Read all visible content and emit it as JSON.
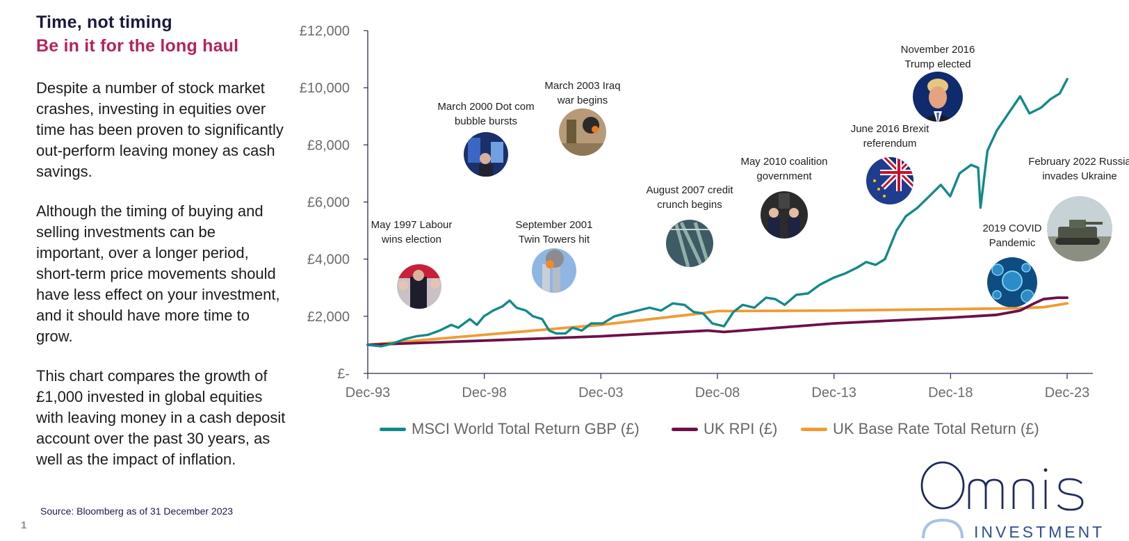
{
  "title": "Time, not timing",
  "subtitle": "Be in it for the long haul",
  "paragraphs": [
    "Despite a number of stock market crashes, investing in equities over time has been proven to significantly out-perform leaving money as cash savings.",
    "Although the timing of buying and selling investments can be important, over a longer period, short-term price movements should have less effect on your investment, and it should have more time to grow.",
    "This chart compares the growth of £1,000 invested in global equities with leaving money in a cash deposit account over the past 30 years, as well as the impact of inflation."
  ],
  "source": "Source: Bloomberg as of 31 December 2023",
  "page_number": "1",
  "logo": {
    "name": "Omnis",
    "tagline": "INVESTMENTS"
  },
  "colors": {
    "msci": "#13898a",
    "rpi": "#6d1049",
    "base": "#ef9c35",
    "axis": "#2a2a55",
    "title_accent": "#b3245d",
    "logo": "#1e2a5e",
    "logo_light": "#a9c1e6"
  },
  "chart_data": {
    "type": "line",
    "x_ticks": [
      "Dec-93",
      "Dec-98",
      "Dec-03",
      "Dec-08",
      "Dec-13",
      "Dec-18",
      "Dec-23"
    ],
    "y_ticks": [
      "£-",
      "£2,000",
      "£4,000",
      "£6,000",
      "£8,000",
      "£10,000",
      "£12,000"
    ],
    "ylim": [
      0,
      12000
    ],
    "xlim": [
      1993.917,
      2023.917
    ],
    "grid": false,
    "legend_position": "bottom",
    "series": [
      {
        "name": "MSCI World Total Return GBP (£)",
        "color": "#13898a",
        "x": [
          1993.92,
          1994.5,
          1995.0,
          1995.5,
          1996.0,
          1996.5,
          1997.0,
          1997.5,
          1997.8,
          1998.3,
          1998.6,
          1998.9,
          1999.3,
          1999.7,
          2000.0,
          2000.3,
          2000.7,
          2001.0,
          2001.4,
          2001.7,
          2002.0,
          2002.4,
          2002.7,
          2003.1,
          2003.5,
          2004.0,
          2004.5,
          2005.0,
          2005.5,
          2006.0,
          2006.5,
          2007.0,
          2007.5,
          2007.9,
          2008.3,
          2008.7,
          2009.2,
          2009.6,
          2010.0,
          2010.5,
          2011.0,
          2011.4,
          2011.8,
          2012.3,
          2012.8,
          2013.3,
          2013.9,
          2014.4,
          2014.9,
          2015.3,
          2015.7,
          2016.1,
          2016.6,
          2017.0,
          2017.5,
          2018.0,
          2018.5,
          2018.9,
          2019.3,
          2019.8,
          2020.1,
          2020.2,
          2020.5,
          2020.9,
          2021.4,
          2021.9,
          2022.3,
          2022.8,
          2023.2,
          2023.6,
          2023.92
        ],
        "values": [
          1000,
          950,
          1050,
          1200,
          1300,
          1350,
          1500,
          1700,
          1600,
          1900,
          1700,
          2000,
          2200,
          2350,
          2550,
          2300,
          2200,
          2000,
          1900,
          1500,
          1400,
          1400,
          1600,
          1500,
          1750,
          1750,
          2000,
          2100,
          2200,
          2300,
          2200,
          2450,
          2400,
          2150,
          2100,
          1750,
          1650,
          2150,
          2400,
          2300,
          2650,
          2600,
          2400,
          2750,
          2800,
          3100,
          3350,
          3500,
          3700,
          3900,
          3800,
          4000,
          5000,
          5500,
          5800,
          6200,
          6600,
          6200,
          7000,
          7300,
          7200,
          5800,
          7800,
          8500,
          9100,
          9700,
          9100,
          9300,
          9600,
          9800,
          10300
        ]
      },
      {
        "name": "UK RPI (£)",
        "color": "#6d1049",
        "x": [
          1993.92,
          1998.9,
          2003.9,
          2008.5,
          2009.2,
          2013.9,
          2018.9,
          2020.9,
          2021.9,
          2022.5,
          2022.9,
          2023.5,
          2023.92
        ],
        "values": [
          1000,
          1150,
          1300,
          1500,
          1450,
          1750,
          1950,
          2050,
          2200,
          2450,
          2600,
          2650,
          2650
        ]
      },
      {
        "name": "UK Base Rate Total Return (£)",
        "color": "#ef9c35",
        "x": [
          1993.92,
          1998.9,
          2003.9,
          2008.2,
          2008.9,
          2013.9,
          2018.9,
          2021.9,
          2022.9,
          2023.92
        ],
        "values": [
          1000,
          1350,
          1700,
          2100,
          2180,
          2200,
          2250,
          2280,
          2320,
          2450
        ]
      }
    ],
    "annotations": [
      {
        "lines": [
          "May 1997 Labour",
          "wins election"
        ],
        "x": 1997.4,
        "photo": "labour-election-photo"
      },
      {
        "lines": [
          "March 2000 Dot com",
          "bubble bursts"
        ],
        "x": 2000.2,
        "photo": "dotcom-photo"
      },
      {
        "lines": [
          "September 2001",
          "Twin Towers hit"
        ],
        "x": 2001.7,
        "photo": "twin-towers-photo"
      },
      {
        "lines": [
          "March 2003 Iraq",
          "war begins"
        ],
        "x": 2003.2,
        "photo": "iraq-war-photo"
      },
      {
        "lines": [
          "August 2007 credit",
          "crunch begins"
        ],
        "x": 2007.6,
        "photo": "credit-crunch-photo"
      },
      {
        "lines": [
          "May 2010 coalition",
          "government"
        ],
        "x": 2010.4,
        "photo": "coalition-photo"
      },
      {
        "lines": [
          "June 2016 Brexit",
          "referendum"
        ],
        "x": 2016.5,
        "photo": "brexit-flag-photo"
      },
      {
        "lines": [
          "November 2016",
          "Trump elected"
        ],
        "x": 2016.8,
        "photo": "trump-photo"
      },
      {
        "lines": [
          "2019 COVID",
          "Pandemic"
        ],
        "x": 2020.0,
        "photo": "covid-virus-photo"
      },
      {
        "lines": [
          "February 2022 Russia",
          "invades Ukraine"
        ],
        "x": 2022.2,
        "photo": "ukraine-tank-photo"
      }
    ]
  }
}
